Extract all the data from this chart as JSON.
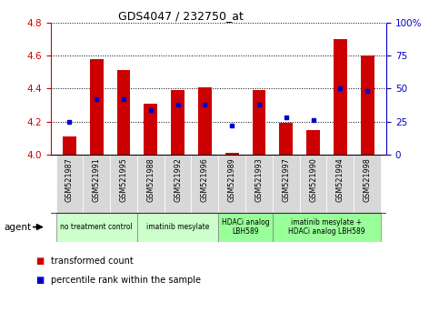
{
  "title": "GDS4047 / 232750_at",
  "samples": [
    "GSM521987",
    "GSM521991",
    "GSM521995",
    "GSM521988",
    "GSM521992",
    "GSM521996",
    "GSM521989",
    "GSM521993",
    "GSM521997",
    "GSM521990",
    "GSM521994",
    "GSM521998"
  ],
  "transformed_count": [
    4.11,
    4.58,
    4.51,
    4.31,
    4.39,
    4.41,
    4.01,
    4.39,
    4.19,
    4.15,
    4.7,
    4.6
  ],
  "percentile_rank": [
    25,
    42,
    42,
    34,
    38,
    38,
    22,
    38,
    28,
    26,
    50,
    48
  ],
  "ylim_left": [
    4.0,
    4.8
  ],
  "ylim_right": [
    0,
    100
  ],
  "yticks_left": [
    4.0,
    4.2,
    4.4,
    4.6,
    4.8
  ],
  "yticks_right": [
    0,
    25,
    50,
    75,
    100
  ],
  "ytick_labels_right": [
    "0",
    "25",
    "50",
    "75",
    "100%"
  ],
  "groups": [
    {
      "label": "no treatment control",
      "start": 0,
      "end": 2,
      "color": "#ccffcc"
    },
    {
      "label": "imatinib mesylate",
      "start": 3,
      "end": 5,
      "color": "#ccffcc"
    },
    {
      "label": "HDACi analog\nLBH589",
      "start": 6,
      "end": 7,
      "color": "#99ff99"
    },
    {
      "label": "imatinib mesylate +\nHDACi analog LBH589",
      "start": 8,
      "end": 11,
      "color": "#99ff99"
    }
  ],
  "bar_color": "#cc0000",
  "dot_color": "#0000cc",
  "bar_width": 0.5,
  "bar_bottom": 4.0,
  "left_axis_color": "#cc0000",
  "right_axis_color": "#0000cc",
  "agent_label": "agent",
  "legend_items": [
    "transformed count",
    "percentile rank within the sample"
  ]
}
